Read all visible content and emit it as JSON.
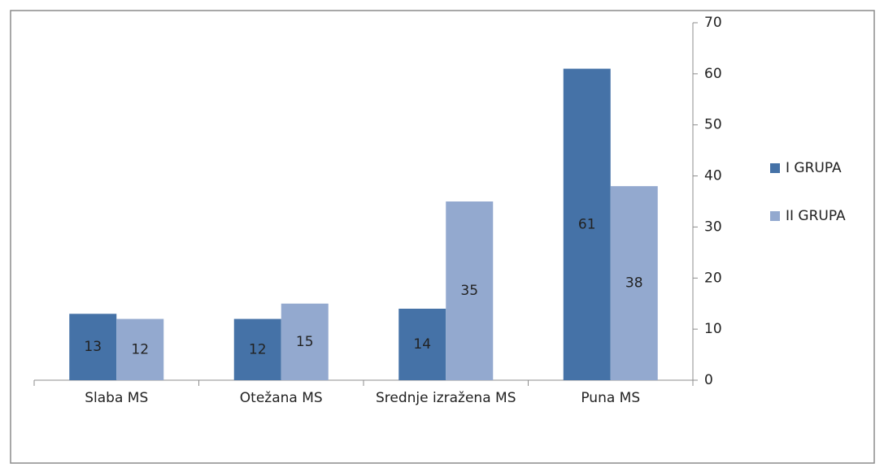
{
  "chart_data": {
    "type": "bar",
    "categories": [
      "Slaba MS",
      "Otežana MS",
      "Srednje izražena MS",
      "Puna MS"
    ],
    "series": [
      {
        "name": "I GRUPA",
        "color": "#4572a7",
        "values": [
          13,
          12,
          14,
          61
        ]
      },
      {
        "name": "II GRUPA",
        "color": "#93a9cf",
        "values": [
          12,
          15,
          35,
          38
        ]
      }
    ],
    "ylim": [
      0,
      70
    ],
    "yticks": [
      0,
      10,
      20,
      30,
      40,
      50,
      60,
      70
    ],
    "y_axis_side": "right",
    "legend": "right",
    "data_labels": true
  }
}
